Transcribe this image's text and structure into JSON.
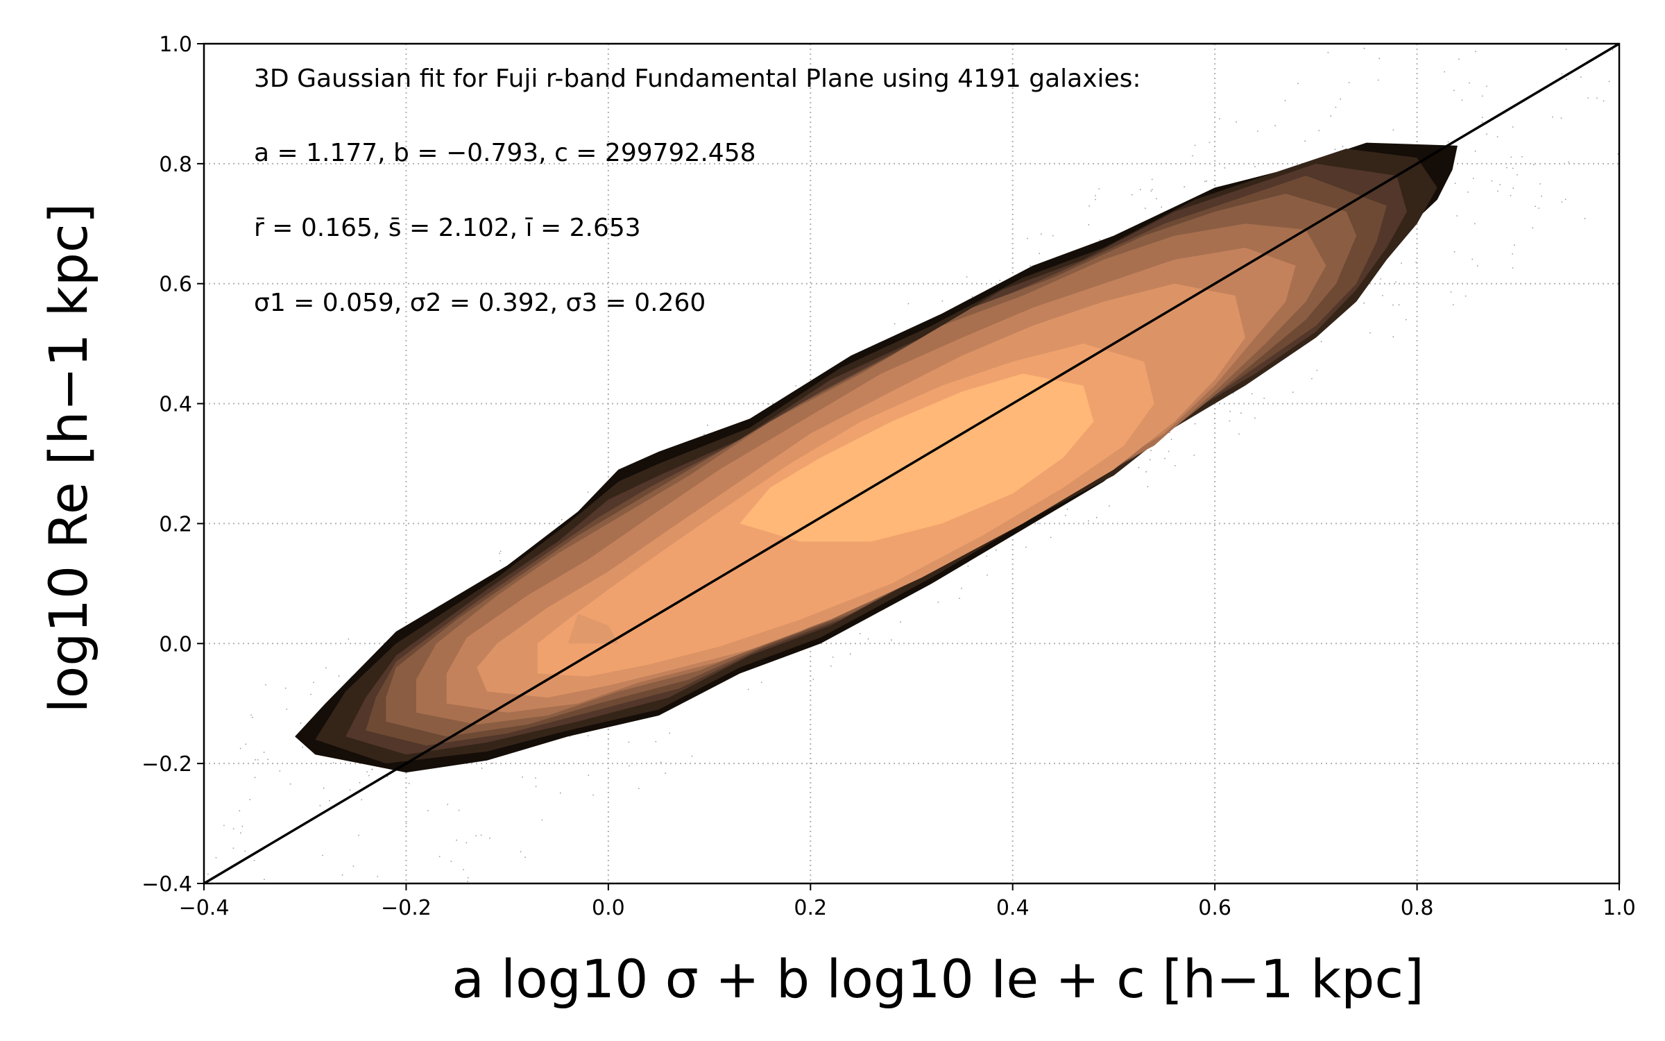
{
  "chart_data": {
    "type": "contour",
    "xlabel": "a log10 σ + b log10 Ie + c [h−1 kpc]",
    "ylabel": "log10 Re [h−1 kpc]",
    "xlim": [
      -0.4,
      1.0
    ],
    "ylim": [
      -0.4,
      1.0
    ],
    "x_ticks": [
      -0.4,
      -0.2,
      0.0,
      0.2,
      0.4,
      0.6,
      0.8,
      1.0
    ],
    "y_ticks": [
      -0.4,
      -0.2,
      0.0,
      0.2,
      0.4,
      0.6,
      0.8,
      1.0
    ],
    "x_tick_labels": [
      "−0.4",
      "−0.2",
      "0.0",
      "0.2",
      "0.4",
      "0.6",
      "0.8",
      "1.0"
    ],
    "y_tick_labels": [
      "−0.4",
      "−0.2",
      "0.0",
      "0.2",
      "0.4",
      "0.6",
      "0.8",
      "1.0"
    ],
    "grid": true,
    "grid_style": "dotted",
    "colormap": "copper",
    "reference_line": {
      "x": [
        -0.4,
        1.0
      ],
      "y": [
        -0.4,
        1.0
      ],
      "color": "#000000"
    },
    "annotations": [
      "3D Gaussian fit for Fuji r-band Fundamental Plane using 4191 galaxies:",
      "a = 1.177, b = −0.793, c = 299792.458",
      "r̄ = 0.165, s̄ = 2.102, ī = 2.653",
      "σ1 = 0.059, σ2 = 0.392, σ3 = 0.260"
    ],
    "contour_levels": [
      {
        "color": "#140d08",
        "points": [
          [
            -0.31,
            -0.155
          ],
          [
            -0.29,
            -0.185
          ],
          [
            -0.2,
            -0.215
          ],
          [
            -0.12,
            -0.195
          ],
          [
            -0.04,
            -0.155
          ],
          [
            0.05,
            -0.12
          ],
          [
            0.13,
            -0.05
          ],
          [
            0.21,
            0.0
          ],
          [
            0.32,
            0.1
          ],
          [
            0.42,
            0.2
          ],
          [
            0.49,
            0.27
          ],
          [
            0.55,
            0.35
          ],
          [
            0.61,
            0.42
          ],
          [
            0.66,
            0.48
          ],
          [
            0.72,
            0.55
          ],
          [
            0.75,
            0.6
          ],
          [
            0.77,
            0.66
          ],
          [
            0.82,
            0.74
          ],
          [
            0.835,
            0.79
          ],
          [
            0.84,
            0.83
          ],
          [
            0.75,
            0.835
          ],
          [
            0.67,
            0.79
          ],
          [
            0.6,
            0.76
          ],
          [
            0.5,
            0.68
          ],
          [
            0.42,
            0.63
          ],
          [
            0.33,
            0.55
          ],
          [
            0.24,
            0.48
          ],
          [
            0.14,
            0.375
          ],
          [
            0.05,
            0.32
          ],
          [
            0.01,
            0.29
          ],
          [
            -0.03,
            0.22
          ],
          [
            -0.1,
            0.13
          ],
          [
            -0.21,
            0.02
          ],
          [
            -0.28,
            -0.1
          ]
        ]
      },
      {
        "color": "#352418",
        "points": [
          [
            -0.29,
            -0.16
          ],
          [
            -0.22,
            -0.2
          ],
          [
            -0.12,
            -0.18
          ],
          [
            -0.04,
            -0.145
          ],
          [
            0.05,
            -0.11
          ],
          [
            0.13,
            -0.04
          ],
          [
            0.21,
            0.01
          ],
          [
            0.32,
            0.11
          ],
          [
            0.42,
            0.21
          ],
          [
            0.5,
            0.28
          ],
          [
            0.56,
            0.36
          ],
          [
            0.63,
            0.43
          ],
          [
            0.7,
            0.51
          ],
          [
            0.74,
            0.57
          ],
          [
            0.77,
            0.64
          ],
          [
            0.8,
            0.7
          ],
          [
            0.82,
            0.76
          ],
          [
            0.8,
            0.81
          ],
          [
            0.73,
            0.825
          ],
          [
            0.65,
            0.78
          ],
          [
            0.58,
            0.74
          ],
          [
            0.49,
            0.66
          ],
          [
            0.41,
            0.61
          ],
          [
            0.32,
            0.53
          ],
          [
            0.23,
            0.46
          ],
          [
            0.14,
            0.36
          ],
          [
            0.05,
            0.3
          ],
          [
            0.01,
            0.27
          ],
          [
            -0.04,
            0.2
          ],
          [
            -0.11,
            0.11
          ],
          [
            -0.21,
            0.0
          ],
          [
            -0.26,
            -0.08
          ]
        ]
      },
      {
        "color": "#52372a",
        "points": [
          [
            -0.26,
            -0.155
          ],
          [
            -0.2,
            -0.185
          ],
          [
            -0.12,
            -0.165
          ],
          [
            -0.03,
            -0.13
          ],
          [
            0.06,
            -0.09
          ],
          [
            0.14,
            -0.02
          ],
          [
            0.22,
            0.03
          ],
          [
            0.33,
            0.13
          ],
          [
            0.43,
            0.23
          ],
          [
            0.51,
            0.3
          ],
          [
            0.57,
            0.38
          ],
          [
            0.64,
            0.45
          ],
          [
            0.7,
            0.52
          ],
          [
            0.74,
            0.59
          ],
          [
            0.77,
            0.66
          ],
          [
            0.79,
            0.72
          ],
          [
            0.78,
            0.78
          ],
          [
            0.7,
            0.8
          ],
          [
            0.63,
            0.76
          ],
          [
            0.56,
            0.72
          ],
          [
            0.47,
            0.64
          ],
          [
            0.39,
            0.59
          ],
          [
            0.31,
            0.51
          ],
          [
            0.22,
            0.44
          ],
          [
            0.13,
            0.34
          ],
          [
            0.05,
            0.28
          ],
          [
            0.0,
            0.24
          ],
          [
            -0.05,
            0.17
          ],
          [
            -0.12,
            0.09
          ],
          [
            -0.21,
            -0.02
          ],
          [
            -0.24,
            -0.09
          ]
        ]
      },
      {
        "color": "#6e4a35",
        "points": [
          [
            -0.24,
            -0.145
          ],
          [
            -0.18,
            -0.17
          ],
          [
            -0.1,
            -0.15
          ],
          [
            -0.02,
            -0.115
          ],
          [
            0.07,
            -0.075
          ],
          [
            0.15,
            -0.01
          ],
          [
            0.23,
            0.04
          ],
          [
            0.34,
            0.14
          ],
          [
            0.44,
            0.24
          ],
          [
            0.52,
            0.31
          ],
          [
            0.58,
            0.39
          ],
          [
            0.64,
            0.46
          ],
          [
            0.7,
            0.53
          ],
          [
            0.74,
            0.6
          ],
          [
            0.76,
            0.67
          ],
          [
            0.77,
            0.73
          ],
          [
            0.69,
            0.78
          ],
          [
            0.62,
            0.74
          ],
          [
            0.55,
            0.7
          ],
          [
            0.46,
            0.63
          ],
          [
            0.38,
            0.57
          ],
          [
            0.3,
            0.5
          ],
          [
            0.21,
            0.42
          ],
          [
            0.12,
            0.33
          ],
          [
            0.04,
            0.26
          ],
          [
            -0.01,
            0.21
          ],
          [
            -0.07,
            0.14
          ],
          [
            -0.13,
            0.07
          ],
          [
            -0.21,
            -0.03
          ],
          [
            -0.23,
            -0.09
          ]
        ]
      },
      {
        "color": "#8b5e43",
        "points": [
          [
            -0.22,
            -0.13
          ],
          [
            -0.16,
            -0.155
          ],
          [
            -0.08,
            -0.135
          ],
          [
            -0.01,
            -0.1
          ],
          [
            0.08,
            -0.06
          ],
          [
            0.16,
            0.0
          ],
          [
            0.24,
            0.05
          ],
          [
            0.35,
            0.15
          ],
          [
            0.45,
            0.25
          ],
          [
            0.53,
            0.32
          ],
          [
            0.59,
            0.4
          ],
          [
            0.64,
            0.47
          ],
          [
            0.69,
            0.54
          ],
          [
            0.72,
            0.6
          ],
          [
            0.74,
            0.68
          ],
          [
            0.73,
            0.72
          ],
          [
            0.67,
            0.75
          ],
          [
            0.6,
            0.72
          ],
          [
            0.53,
            0.68
          ],
          [
            0.44,
            0.61
          ],
          [
            0.36,
            0.56
          ],
          [
            0.28,
            0.48
          ],
          [
            0.19,
            0.4
          ],
          [
            0.1,
            0.31
          ],
          [
            0.03,
            0.24
          ],
          [
            -0.03,
            0.18
          ],
          [
            -0.09,
            0.11
          ],
          [
            -0.15,
            0.04
          ],
          [
            -0.21,
            -0.04
          ],
          [
            -0.22,
            -0.09
          ]
        ]
      },
      {
        "color": "#a8704f",
        "points": [
          [
            -0.19,
            -0.115
          ],
          [
            -0.13,
            -0.135
          ],
          [
            -0.06,
            -0.12
          ],
          [
            0.01,
            -0.08
          ],
          [
            0.09,
            -0.045
          ],
          [
            0.17,
            0.01
          ],
          [
            0.26,
            0.07
          ],
          [
            0.36,
            0.17
          ],
          [
            0.46,
            0.26
          ],
          [
            0.54,
            0.33
          ],
          [
            0.6,
            0.42
          ],
          [
            0.65,
            0.5
          ],
          [
            0.69,
            0.57
          ],
          [
            0.71,
            0.63
          ],
          [
            0.69,
            0.69
          ],
          [
            0.63,
            0.7
          ],
          [
            0.56,
            0.68
          ],
          [
            0.49,
            0.64
          ],
          [
            0.41,
            0.58
          ],
          [
            0.33,
            0.53
          ],
          [
            0.25,
            0.45
          ],
          [
            0.16,
            0.37
          ],
          [
            0.08,
            0.28
          ],
          [
            0.01,
            0.21
          ],
          [
            -0.05,
            0.15
          ],
          [
            -0.11,
            0.08
          ],
          [
            -0.17,
            0.0
          ],
          [
            -0.19,
            -0.06
          ]
        ]
      },
      {
        "color": "#c4825c",
        "points": [
          [
            -0.16,
            -0.1
          ],
          [
            -0.1,
            -0.115
          ],
          [
            -0.03,
            -0.1
          ],
          [
            0.03,
            -0.065
          ],
          [
            0.11,
            -0.03
          ],
          [
            0.19,
            0.02
          ],
          [
            0.28,
            0.09
          ],
          [
            0.38,
            0.19
          ],
          [
            0.48,
            0.28
          ],
          [
            0.55,
            0.35
          ],
          [
            0.6,
            0.43
          ],
          [
            0.64,
            0.51
          ],
          [
            0.67,
            0.57
          ],
          [
            0.68,
            0.63
          ],
          [
            0.63,
            0.66
          ],
          [
            0.56,
            0.64
          ],
          [
            0.49,
            0.6
          ],
          [
            0.42,
            0.56
          ],
          [
            0.35,
            0.51
          ],
          [
            0.27,
            0.45
          ],
          [
            0.19,
            0.37
          ],
          [
            0.11,
            0.29
          ],
          [
            0.04,
            0.21
          ],
          [
            -0.02,
            0.14
          ],
          [
            -0.08,
            0.08
          ],
          [
            -0.14,
            0.01
          ],
          [
            -0.16,
            -0.05
          ]
        ]
      },
      {
        "color": "#dc9466",
        "points": [
          [
            -0.12,
            -0.08
          ],
          [
            -0.06,
            -0.09
          ],
          [
            0.0,
            -0.07
          ],
          [
            0.06,
            -0.045
          ],
          [
            0.14,
            -0.01
          ],
          [
            0.22,
            0.04
          ],
          [
            0.31,
            0.11
          ],
          [
            0.41,
            0.2
          ],
          [
            0.5,
            0.29
          ],
          [
            0.56,
            0.37
          ],
          [
            0.6,
            0.44
          ],
          [
            0.63,
            0.51
          ],
          [
            0.62,
            0.58
          ],
          [
            0.56,
            0.6
          ],
          [
            0.49,
            0.57
          ],
          [
            0.42,
            0.53
          ],
          [
            0.35,
            0.48
          ],
          [
            0.28,
            0.42
          ],
          [
            0.2,
            0.35
          ],
          [
            0.13,
            0.27
          ],
          [
            0.06,
            0.19
          ],
          [
            0.0,
            0.12
          ],
          [
            -0.06,
            0.06
          ],
          [
            -0.11,
            0.0
          ],
          [
            -0.13,
            -0.04
          ]
        ]
      },
      {
        "color": "#f0a26e",
        "points": [
          [
            -0.07,
            -0.05
          ],
          [
            -0.02,
            -0.055
          ],
          [
            0.04,
            -0.035
          ],
          [
            0.11,
            -0.005
          ],
          [
            0.19,
            0.04
          ],
          [
            0.28,
            0.1
          ],
          [
            0.37,
            0.18
          ],
          [
            0.45,
            0.26
          ],
          [
            0.51,
            0.33
          ],
          [
            0.54,
            0.4
          ],
          [
            0.53,
            0.47
          ],
          [
            0.47,
            0.5
          ],
          [
            0.4,
            0.47
          ],
          [
            0.33,
            0.43
          ],
          [
            0.25,
            0.37
          ],
          [
            0.18,
            0.3
          ],
          [
            0.11,
            0.22
          ],
          [
            0.05,
            0.15
          ],
          [
            0.0,
            0.09
          ],
          [
            -0.04,
            0.04
          ],
          [
            -0.07,
            0.0
          ]
        ]
      },
      {
        "color": "#ffb877",
        "points": [
          [
            0.13,
            0.2
          ],
          [
            0.19,
            0.17
          ],
          [
            0.26,
            0.17
          ],
          [
            0.33,
            0.2
          ],
          [
            0.4,
            0.25
          ],
          [
            0.45,
            0.31
          ],
          [
            0.48,
            0.37
          ],
          [
            0.47,
            0.43
          ],
          [
            0.41,
            0.45
          ],
          [
            0.35,
            0.42
          ],
          [
            0.28,
            0.37
          ],
          [
            0.21,
            0.31
          ],
          [
            0.16,
            0.26
          ]
        ]
      },
      {
        "color": "#e0996a",
        "points": [
          [
            -0.04,
            0.0
          ],
          [
            -0.03,
            0.05
          ],
          [
            0.0,
            0.03
          ],
          [
            0.01,
            0.0
          ]
        ]
      }
    ]
  }
}
